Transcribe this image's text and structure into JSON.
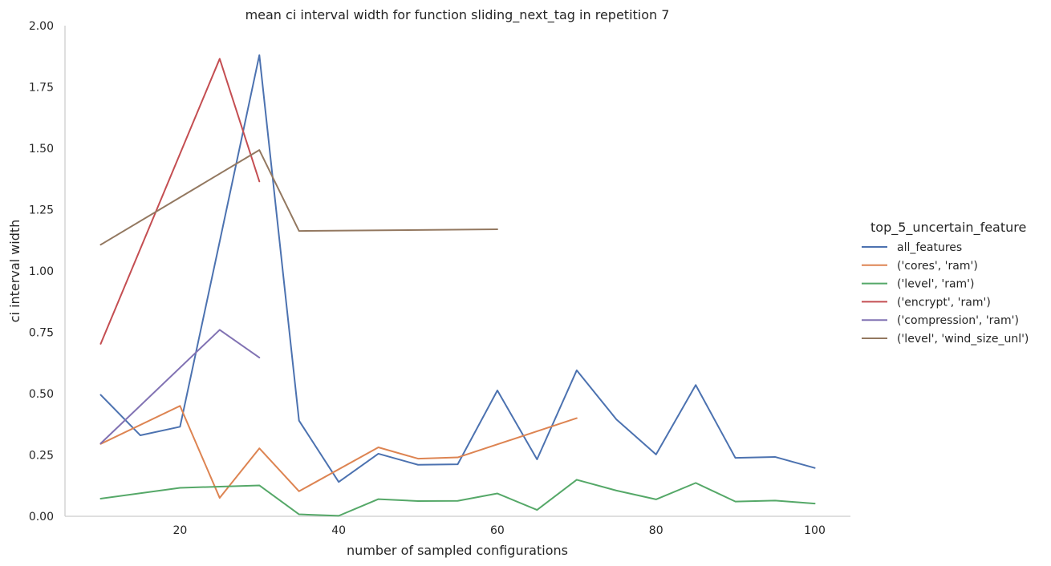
{
  "chart_data": {
    "type": "line",
    "title": "mean ci interval width for function sliding_next_tag in repetition 7",
    "xlabel": "number of sampled configurations",
    "ylabel": "ci interval width",
    "xlim": [
      5.5,
      104.5
    ],
    "ylim": [
      0,
      2.0
    ],
    "xticks": [
      20,
      40,
      60,
      80,
      100
    ],
    "xtick_labels": [
      "20",
      "40",
      "60",
      "80",
      "100"
    ],
    "yticks": [
      0,
      0.25,
      0.5,
      0.75,
      1.0,
      1.25,
      1.5,
      1.75,
      2.0
    ],
    "ytick_labels": [
      "0.00",
      "0.25",
      "0.50",
      "0.75",
      "1.00",
      "1.25",
      "1.50",
      "1.75",
      "2.00"
    ],
    "grid": false,
    "legend": {
      "title": "top_5_uncertain_feature",
      "placement": "right"
    },
    "series": [
      {
        "name": "all_features",
        "color": "#4c72b0",
        "x": [
          10,
          15,
          20,
          25,
          30,
          35,
          40,
          45,
          50,
          55,
          60,
          65,
          70,
          75,
          80,
          85,
          90,
          95,
          100
        ],
        "y": [
          0.495,
          0.33,
          0.365,
          1.12,
          1.88,
          0.39,
          0.14,
          0.255,
          0.21,
          0.212,
          0.513,
          0.232,
          0.595,
          0.395,
          0.252,
          0.535,
          0.238,
          0.242,
          0.197
        ]
      },
      {
        "name": "('cores', 'ram')",
        "color": "#dd8452",
        "x": [
          10,
          20,
          25,
          30,
          35,
          45,
          50,
          55,
          70
        ],
        "y": [
          0.295,
          0.45,
          0.075,
          0.277,
          0.102,
          0.281,
          0.235,
          0.24,
          0.4
        ]
      },
      {
        "name": "('level', 'ram')",
        "color": "#55a868",
        "x": [
          10,
          20,
          30,
          35,
          40,
          45,
          50,
          55,
          60,
          65,
          70,
          75,
          80,
          85,
          90,
          95,
          100
        ],
        "y": [
          0.072,
          0.116,
          0.126,
          0.008,
          0.002,
          0.07,
          0.062,
          0.063,
          0.093,
          0.026,
          0.149,
          0.105,
          0.069,
          0.136,
          0.06,
          0.064,
          0.052
        ]
      },
      {
        "name": "('encrypt', 'ram')",
        "color": "#c44e52",
        "x": [
          10,
          25,
          30
        ],
        "y": [
          0.703,
          1.865,
          1.365
        ]
      },
      {
        "name": "('compression', 'ram')",
        "color": "#8172b3",
        "x": [
          10,
          25,
          30
        ],
        "y": [
          0.297,
          0.76,
          0.647
        ]
      },
      {
        "name": "('level', 'wind_size_unl')",
        "color": "#937860",
        "x": [
          10,
          30,
          35,
          60
        ],
        "y": [
          1.107,
          1.493,
          1.163,
          1.17
        ]
      }
    ]
  }
}
